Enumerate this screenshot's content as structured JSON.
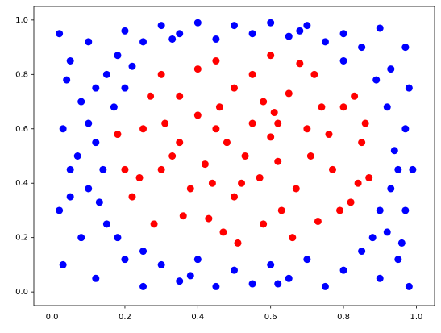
{
  "chart_data": {
    "type": "scatter",
    "xlim": [
      -0.05,
      1.05
    ],
    "ylim": [
      -0.05,
      1.05
    ],
    "xticks": [
      {
        "value": 0,
        "label": "0.0"
      },
      0.2,
      0.4,
      0.6,
      0.8,
      {
        "value": 1,
        "label": "1.0"
      }
    ],
    "yticks": [
      {
        "value": 0,
        "label": "0.0"
      },
      0.2,
      0.4,
      0.6,
      0.8,
      {
        "value": 1,
        "label": "1.0"
      }
    ],
    "grid": false,
    "series": [
      {
        "color": "#ff0000",
        "x": [
          0.3,
          0.45,
          0.6,
          0.72,
          0.35,
          0.5,
          0.65,
          0.8,
          0.25,
          0.4,
          0.55,
          0.7,
          0.85,
          0.2,
          0.33,
          0.48,
          0.62,
          0.77,
          0.87,
          0.22,
          0.38,
          0.52,
          0.67,
          0.82,
          0.28,
          0.43,
          0.58,
          0.73,
          0.86,
          0.18,
          0.31,
          0.46,
          0.61,
          0.76,
          0.84,
          0.24,
          0.36,
          0.51,
          0.66,
          0.79,
          0.3,
          0.42,
          0.57,
          0.71,
          0.83,
          0.27,
          0.45,
          0.6,
          0.74,
          0.4,
          0.55,
          0.68,
          0.35,
          0.5,
          0.63,
          0.47,
          0.58,
          0.53,
          0.44,
          0.62
        ],
        "y": [
          0.8,
          0.85,
          0.87,
          0.8,
          0.72,
          0.75,
          0.73,
          0.68,
          0.6,
          0.65,
          0.62,
          0.6,
          0.55,
          0.45,
          0.5,
          0.55,
          0.48,
          0.45,
          0.42,
          0.35,
          0.38,
          0.4,
          0.38,
          0.33,
          0.25,
          0.27,
          0.25,
          0.26,
          0.62,
          0.58,
          0.62,
          0.68,
          0.66,
          0.58,
          0.4,
          0.42,
          0.28,
          0.18,
          0.2,
          0.3,
          0.45,
          0.47,
          0.42,
          0.5,
          0.72,
          0.72,
          0.6,
          0.57,
          0.68,
          0.82,
          0.8,
          0.84,
          0.55,
          0.35,
          0.3,
          0.22,
          0.7,
          0.5,
          0.4,
          0.62
        ]
      },
      {
        "color": "#0000ff",
        "x": [
          0.02,
          0.05,
          0.1,
          0.15,
          0.08,
          0.03,
          0.12,
          0.05,
          0.1,
          0.02,
          0.08,
          0.15,
          0.03,
          0.12,
          0.2,
          0.25,
          0.3,
          0.35,
          0.4,
          0.45,
          0.5,
          0.55,
          0.6,
          0.65,
          0.7,
          0.75,
          0.8,
          0.85,
          0.9,
          0.95,
          0.98,
          0.92,
          0.97,
          0.93,
          0.99,
          0.94,
          0.97,
          0.92,
          0.98,
          0.93,
          0.97,
          0.9,
          0.85,
          0.8,
          0.75,
          0.7,
          0.65,
          0.6,
          0.55,
          0.5,
          0.45,
          0.4,
          0.35,
          0.3,
          0.25,
          0.2,
          0.18,
          0.22,
          0.12,
          0.17,
          0.1,
          0.14,
          0.13,
          0.18,
          0.25,
          0.88,
          0.9,
          0.89,
          0.8,
          0.2,
          0.07,
          0.95,
          0.05,
          0.62,
          0.38,
          0.33,
          0.68,
          0.96,
          0.04
        ],
        "y": [
          0.95,
          0.85,
          0.92,
          0.8,
          0.7,
          0.6,
          0.55,
          0.45,
          0.38,
          0.3,
          0.2,
          0.25,
          0.1,
          0.05,
          0.12,
          0.02,
          0.1,
          0.04,
          0.12,
          0.02,
          0.08,
          0.03,
          0.1,
          0.05,
          0.12,
          0.02,
          0.08,
          0.15,
          0.05,
          0.12,
          0.02,
          0.22,
          0.3,
          0.38,
          0.45,
          0.52,
          0.6,
          0.68,
          0.75,
          0.82,
          0.9,
          0.97,
          0.9,
          0.95,
          0.92,
          0.98,
          0.94,
          0.99,
          0.95,
          0.98,
          0.93,
          0.99,
          0.95,
          0.98,
          0.92,
          0.96,
          0.87,
          0.83,
          0.75,
          0.68,
          0.62,
          0.45,
          0.33,
          0.2,
          0.15,
          0.2,
          0.3,
          0.78,
          0.85,
          0.75,
          0.5,
          0.45,
          0.35,
          0.03,
          0.06,
          0.93,
          0.96,
          0.18,
          0.78
        ]
      }
    ]
  }
}
